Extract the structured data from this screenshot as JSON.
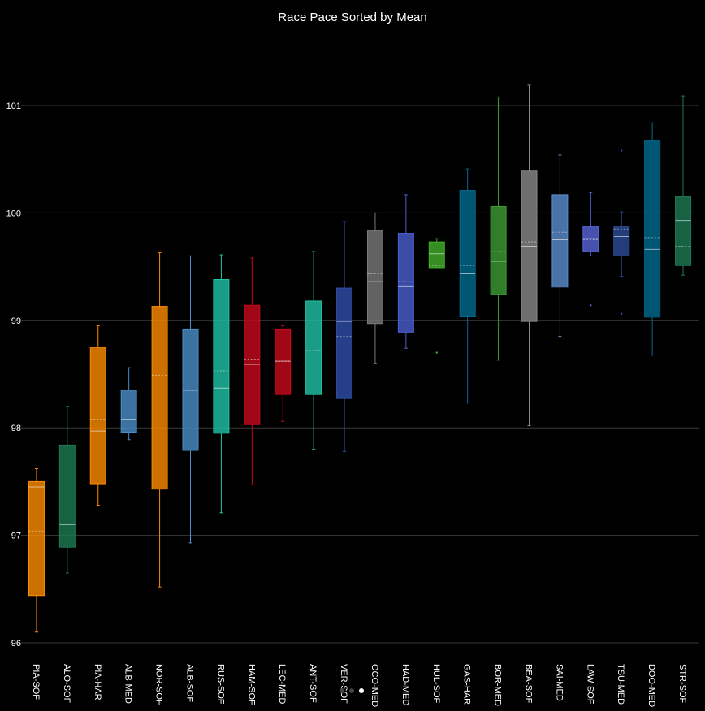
{
  "chart_data": {
    "type": "box",
    "title": "Race Pace Sorted by Mean",
    "xlabel": "",
    "ylabel": "",
    "ylim": [
      95.9,
      102.2
    ],
    "yticks": [
      96,
      97,
      98,
      99,
      100,
      101
    ],
    "grid": true,
    "categories": [
      "PIA-SOF",
      "ALO-SOF",
      "PIA-HAR",
      "ALB-MED",
      "NOR-SOF",
      "ALB-SOF",
      "RUS-SOF",
      "HAM-SOF",
      "LEC-MED",
      "ANT-SOF",
      "VER-SOF",
      "OCO-MED",
      "HAD-MED",
      "HUL-SOF",
      "GAS-HAR",
      "BOR-MED",
      "BEA-SOF",
      "SAI-MED",
      "LAW-SOF",
      "TSU-MED",
      "DOO-MED",
      "STR-SOF"
    ],
    "series": [
      {
        "min": 96.1,
        "q1": 96.44,
        "median": 97.45,
        "mean": 97.04,
        "q3": 97.5,
        "max": 97.62,
        "outliers": [],
        "color": "#ff8c00"
      },
      {
        "min": 96.65,
        "q1": 96.89,
        "median": 97.1,
        "mean": 97.31,
        "q3": 97.84,
        "max": 98.2,
        "outliers": [],
        "color": "#1e7a55"
      },
      {
        "min": 97.28,
        "q1": 97.48,
        "median": 97.97,
        "mean": 98.08,
        "q3": 98.75,
        "max": 98.95,
        "outliers": [],
        "color": "#ff8c00"
      },
      {
        "min": 97.89,
        "q1": 97.96,
        "median": 98.08,
        "mean": 98.15,
        "q3": 98.35,
        "max": 98.56,
        "outliers": [],
        "color": "#4a8fc8"
      },
      {
        "min": 96.52,
        "q1": 97.43,
        "median": 98.27,
        "mean": 98.49,
        "q3": 99.13,
        "max": 99.63,
        "outliers": [],
        "color": "#ff8c00"
      },
      {
        "min": 96.93,
        "q1": 97.79,
        "median": 98.35,
        "mean": 98.35,
        "q3": 98.92,
        "max": 99.6,
        "outliers": [],
        "color": "#4a8fc8"
      },
      {
        "min": 97.21,
        "q1": 97.95,
        "median": 98.37,
        "mean": 98.53,
        "q3": 99.38,
        "max": 99.61,
        "outliers": [],
        "color": "#20c4a8"
      },
      {
        "min": 97.47,
        "q1": 98.03,
        "median": 98.59,
        "mean": 98.64,
        "q3": 99.14,
        "max": 99.58,
        "outliers": [],
        "color": "#c80a1e"
      },
      {
        "min": 98.06,
        "q1": 98.31,
        "median": 98.62,
        "mean": 98.62,
        "q3": 98.92,
        "max": 98.95,
        "outliers": [],
        "color": "#c80a1e"
      },
      {
        "min": 97.8,
        "q1": 98.31,
        "median": 98.67,
        "mean": 98.72,
        "q3": 99.18,
        "max": 99.64,
        "outliers": [],
        "color": "#20c4a8"
      },
      {
        "min": 97.78,
        "q1": 98.28,
        "median": 98.99,
        "mean": 98.85,
        "q3": 99.3,
        "max": 99.92,
        "outliers": [],
        "color": "#2f4faa"
      },
      {
        "min": 98.6,
        "q1": 98.97,
        "median": 99.36,
        "mean": 99.44,
        "q3": 99.84,
        "max": 100.0,
        "outliers": [],
        "color": "#7a7a7a"
      },
      {
        "min": 98.74,
        "q1": 98.89,
        "median": 99.32,
        "mean": 99.36,
        "q3": 99.81,
        "max": 100.17,
        "outliers": [],
        "color": "#4a5fd0"
      },
      {
        "min": 99.49,
        "q1": 99.49,
        "median": 99.62,
        "mean": 99.51,
        "q3": 99.73,
        "max": 99.76,
        "outliers": [
          98.7
        ],
        "color": "#43b02a"
      },
      {
        "min": 98.23,
        "q1": 99.04,
        "median": 99.44,
        "mean": 99.51,
        "q3": 100.21,
        "max": 100.41,
        "outliers": [],
        "color": "#006b8f"
      },
      {
        "min": 98.63,
        "q1": 99.24,
        "median": 99.55,
        "mean": 99.64,
        "q3": 100.06,
        "max": 101.08,
        "outliers": [],
        "color": "#3d9e35"
      },
      {
        "min": 98.02,
        "q1": 98.99,
        "median": 99.69,
        "mean": 99.73,
        "q3": 100.39,
        "max": 101.19,
        "outliers": [],
        "color": "#8a8a8a"
      },
      {
        "min": 98.85,
        "q1": 99.31,
        "median": 99.75,
        "mean": 99.82,
        "q3": 100.17,
        "max": 100.54,
        "outliers": [],
        "color": "#5b8fd0"
      },
      {
        "min": 99.6,
        "q1": 99.64,
        "median": 99.76,
        "mean": 99.75,
        "q3": 99.87,
        "max": 100.19,
        "outliers": [
          99.14
        ],
        "color": "#5866d8"
      },
      {
        "min": 99.41,
        "q1": 99.6,
        "median": 99.78,
        "mean": 99.85,
        "q3": 99.87,
        "max": 100.01,
        "outliers": [
          100.58,
          99.06
        ],
        "color": "#2b4c99"
      },
      {
        "min": 98.67,
        "q1": 99.03,
        "median": 99.66,
        "mean": 99.77,
        "q3": 100.67,
        "max": 100.84,
        "outliers": [],
        "color": "#006b8f"
      },
      {
        "min": 99.42,
        "q1": 99.51,
        "median": 99.93,
        "mean": 99.69,
        "q3": 100.15,
        "max": 101.09,
        "outliers": [],
        "color": "#1e7a55"
      }
    ]
  }
}
